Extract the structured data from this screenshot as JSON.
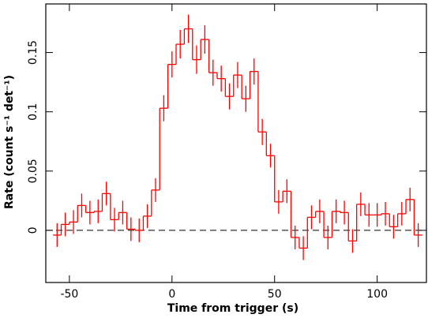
{
  "chart_data": {
    "type": "step-histogram",
    "xlabel": "Time from trigger (s)",
    "ylabel": "Rate (count s⁻¹ det⁻¹)",
    "bins": [
      -58,
      -54,
      -50,
      -46,
      -42,
      -38,
      -34,
      -30,
      -26,
      -22,
      -18,
      -14,
      -10,
      -6,
      -2,
      2,
      6,
      10,
      14,
      18,
      22,
      26,
      30,
      34,
      38,
      42,
      46,
      50,
      54,
      58,
      62,
      66,
      70,
      74,
      78,
      82,
      86,
      90,
      94,
      98,
      102,
      106,
      110,
      114,
      118,
      122
    ],
    "values": [
      -0.004,
      0.005,
      0.007,
      0.021,
      0.015,
      0.016,
      0.031,
      0.009,
      0.015,
      0.001,
      0.0,
      0.012,
      0.034,
      0.103,
      0.14,
      0.157,
      0.17,
      0.144,
      0.161,
      0.133,
      0.128,
      0.113,
      0.131,
      0.111,
      0.134,
      0.083,
      0.063,
      0.024,
      0.033,
      -0.006,
      -0.015,
      0.011,
      0.016,
      -0.006,
      0.016,
      0.015,
      -0.009,
      0.022,
      0.013,
      0.013,
      0.014,
      0.003,
      0.014,
      0.026,
      -0.004
    ],
    "errors": [
      0.01,
      0.01,
      0.01,
      0.01,
      0.01,
      0.01,
      0.01,
      0.01,
      0.01,
      0.01,
      0.01,
      0.01,
      0.01,
      0.011,
      0.011,
      0.012,
      0.012,
      0.012,
      0.012,
      0.011,
      0.011,
      0.011,
      0.011,
      0.011,
      0.011,
      0.011,
      0.01,
      0.01,
      0.01,
      0.01,
      0.01,
      0.01,
      0.01,
      0.01,
      0.01,
      0.01,
      0.01,
      0.01,
      0.01,
      0.01,
      0.01,
      0.01,
      0.01,
      0.01,
      0.01
    ],
    "color": "#ff0000",
    "xlim": [
      -61.5,
      124
    ],
    "ylim": [
      -0.044,
      0.191
    ],
    "xticks": [
      -50,
      0,
      50,
      100
    ],
    "yticks": [
      0,
      0.05,
      0.1,
      0.15
    ]
  }
}
